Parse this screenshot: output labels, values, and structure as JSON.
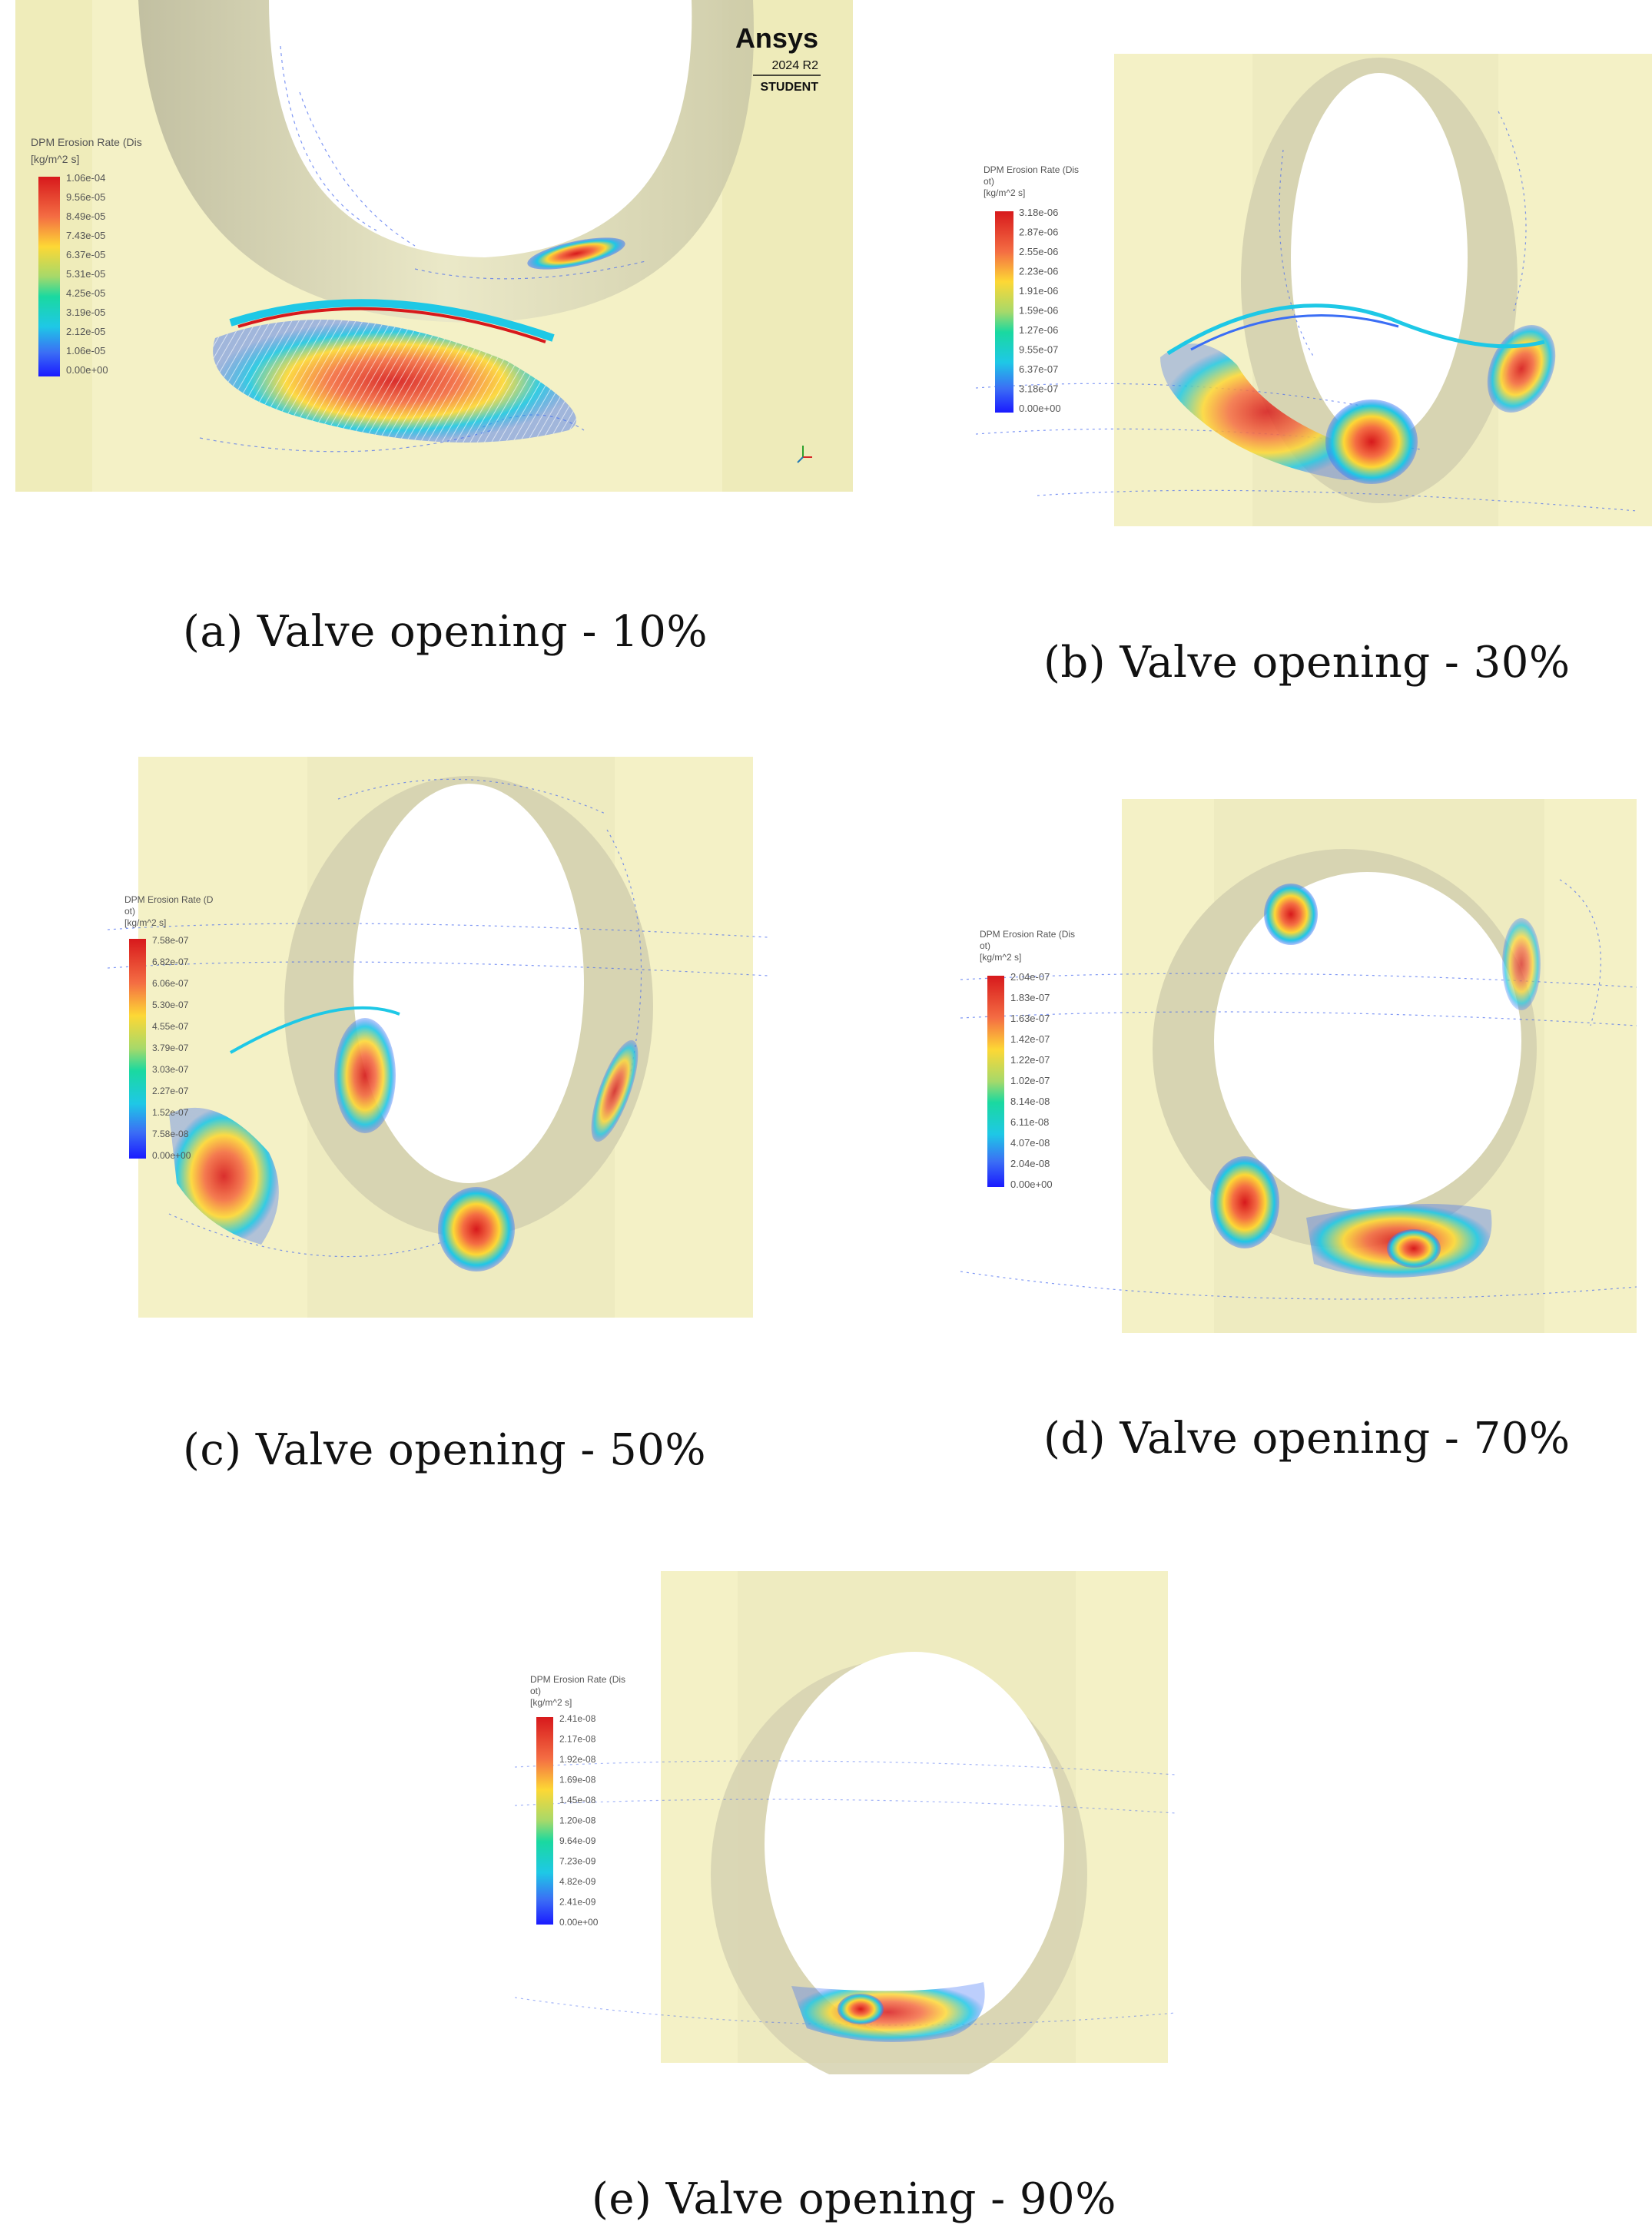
{
  "panels": [
    {
      "id": "a",
      "caption": "(a) Valve opening - 10%",
      "colorbar": {
        "title_lines": [
          "DPM Erosion Rate (Dis",
          "[kg/m^2 s]"
        ],
        "ticks": [
          "1.06e-04",
          "9.56e-05",
          "8.49e-05",
          "7.43e-05",
          "6.37e-05",
          "5.31e-05",
          "4.25e-05",
          "3.19e-05",
          "2.12e-05",
          "1.06e-05",
          "0.00e+00"
        ]
      },
      "brand": {
        "name": "Ansys",
        "version": "2024 R2",
        "edition": "STUDENT"
      }
    },
    {
      "id": "b",
      "caption": "(b) Valve opening - 30%",
      "colorbar": {
        "title_lines": [
          "DPM Erosion Rate (Dis",
          "ot)",
          "[kg/m^2 s]"
        ],
        "ticks": [
          "3.18e-06",
          "2.87e-06",
          "2.55e-06",
          "2.23e-06",
          "1.91e-06",
          "1.59e-06",
          "1.27e-06",
          "9.55e-07",
          "6.37e-07",
          "3.18e-07",
          "0.00e+00"
        ]
      }
    },
    {
      "id": "c",
      "caption": "(c) Valve opening - 50%",
      "colorbar": {
        "title_lines": [
          "DPM Erosion Rate (D",
          "ot)",
          "[kg/m^2 s]"
        ],
        "ticks": [
          "7.58e-07",
          "6.82e-07",
          "6.06e-07",
          "5.30e-07",
          "4.55e-07",
          "3.79e-07",
          "3.03e-07",
          "2.27e-07",
          "1.52e-07",
          "7.58e-08",
          "0.00e+00"
        ]
      }
    },
    {
      "id": "d",
      "caption": "(d) Valve opening - 70%",
      "colorbar": {
        "title_lines": [
          "DPM Erosion Rate (Dis",
          "ot)",
          "[kg/m^2 s]"
        ],
        "ticks": [
          "2.04e-07",
          "1.83e-07",
          "1.63e-07",
          "1.42e-07",
          "1.22e-07",
          "1.02e-07",
          "8.14e-08",
          "6.11e-08",
          "4.07e-08",
          "2.04e-08",
          "0.00e+00"
        ]
      }
    },
    {
      "id": "e",
      "caption": "(e) Valve opening - 90%",
      "colorbar": {
        "title_lines": [
          "DPM Erosion Rate (Dis",
          "ot)",
          "[kg/m^2 s]"
        ],
        "ticks": [
          "2.41e-08",
          "2.17e-08",
          "1.92e-08",
          "1.69e-08",
          "1.45e-08",
          "1.20e-08",
          "9.64e-09",
          "7.23e-09",
          "4.82e-09",
          "2.41e-09",
          "0.00e+00"
        ]
      }
    }
  ]
}
